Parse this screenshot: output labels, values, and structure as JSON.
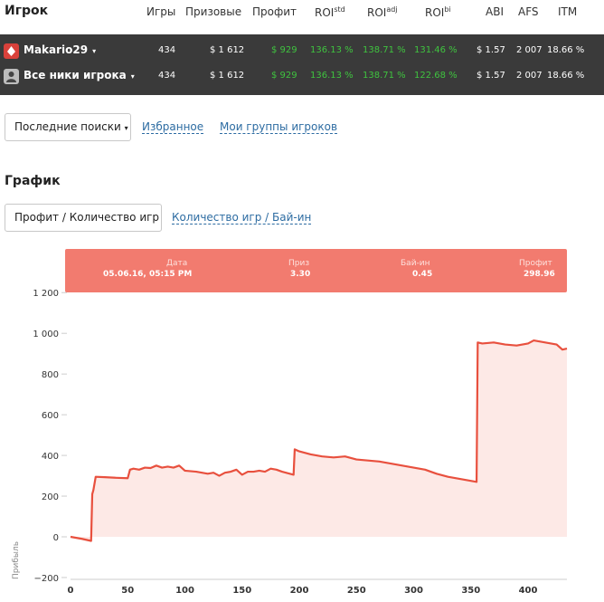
{
  "header": {
    "player_label": "Игрок",
    "columns": [
      "Игры",
      "Призовые",
      "Профит",
      "ROI",
      "ROI",
      "ROI",
      "ABI",
      "AFS",
      "ITM"
    ],
    "roi_superscripts": [
      "std",
      "adj",
      "bi"
    ]
  },
  "rows": [
    {
      "name": "Makario29",
      "icon": "poker-site-icon",
      "games": "434",
      "prize": "$ 1 612",
      "profit": "$ 929",
      "roi_std": "136.13 %",
      "roi_adj": "138.71 %",
      "roi_bi": "131.46 %",
      "abi": "$ 1.57",
      "afs": "2 007",
      "itm": "18.66 %"
    },
    {
      "name": "Все ники игрока",
      "icon": "group-users-icon",
      "games": "434",
      "prize": "$ 1 612",
      "profit": "$ 929",
      "roi_std": "136.13 %",
      "roi_adj": "138.71 %",
      "roi_bi": "122.68 %",
      "abi": "$ 1.57",
      "afs": "2 007",
      "itm": "18.66 %"
    }
  ],
  "caret": "▾",
  "nav": {
    "recent_searches": "Последние поиски",
    "favorites": "Избранное",
    "player_groups": "Мои группы игроков"
  },
  "graph": {
    "title": "График",
    "tab_active": "Профит / Количество игр",
    "tab_other": "Количество игр / Бай-ин"
  },
  "tooltip": {
    "date_label": "Дата",
    "date_value": "05.06.16, 05:15 PM",
    "prize_label": "Приз",
    "prize_value": "3.30",
    "buyin_label": "Бай-ин",
    "buyin_value": "0.45",
    "profit_label": "Профит",
    "profit_value": "298.96"
  },
  "colors": {
    "line": "#e8503e",
    "fill": "#fde9e6",
    "header_bg": "#3a3a3a",
    "profit_green": "#3fc33f",
    "tooltip_bg": "#f27b6f"
  },
  "chart_data": {
    "type": "area",
    "ylabel": "Прибыль",
    "xlim": [
      0,
      434
    ],
    "ylim": [
      -200,
      1200
    ],
    "x_ticks": [
      0,
      50,
      100,
      150,
      200,
      250,
      300,
      350,
      400
    ],
    "y_ticks": [
      -200,
      0,
      200,
      400,
      600,
      800,
      1000,
      1200
    ],
    "y_tick_labels": [
      "−200",
      "0",
      "200",
      "400",
      "600",
      "800",
      "1 000",
      "1 200"
    ],
    "series": [
      {
        "x": [
          0,
          10,
          18,
          19,
          20,
          22,
          30,
          40,
          50,
          52,
          55,
          60,
          65,
          70,
          75,
          80,
          85,
          90,
          95,
          100,
          110,
          120,
          125,
          130,
          135,
          140,
          145,
          150,
          155,
          160,
          165,
          170,
          175,
          180,
          185,
          195,
          196,
          200,
          210,
          220,
          230,
          240,
          250,
          260,
          270,
          280,
          290,
          300,
          310,
          320,
          330,
          340,
          350,
          355,
          356,
          360,
          370,
          380,
          390,
          400,
          405,
          410,
          420,
          425,
          430,
          434
        ],
        "y": [
          0,
          -10,
          -20,
          210,
          230,
          295,
          293,
          290,
          288,
          330,
          335,
          330,
          340,
          338,
          350,
          340,
          345,
          340,
          350,
          325,
          320,
          310,
          315,
          300,
          315,
          320,
          330,
          305,
          320,
          320,
          325,
          320,
          335,
          330,
          320,
          305,
          430,
          420,
          405,
          395,
          390,
          395,
          380,
          375,
          370,
          360,
          350,
          340,
          330,
          310,
          295,
          285,
          275,
          270,
          955,
          950,
          955,
          945,
          940,
          950,
          965,
          960,
          950,
          945,
          920,
          925
        ]
      }
    ]
  }
}
